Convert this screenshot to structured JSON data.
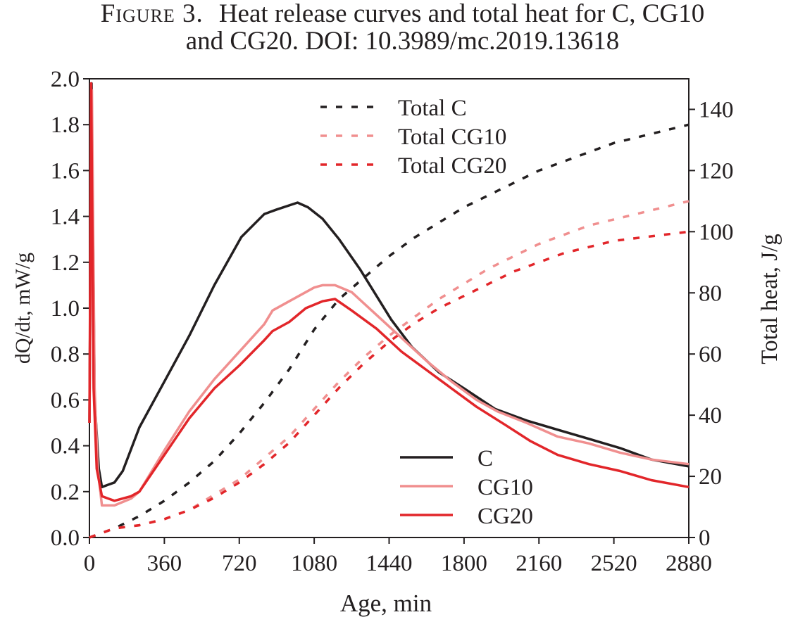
{
  "caption": {
    "label": "Figure 3.",
    "line1": "Heat release curves and total heat for C, CG10",
    "line2": "and CG20. DOI: 10.3989/mc.2019.13618"
  },
  "chart_data": {
    "type": "line",
    "xlabel": "Age, min",
    "ylabel_left": "dQ/dt, mW/g",
    "ylabel_right": "Total heat, J/g",
    "xlim": [
      0,
      2880
    ],
    "ylim_left": [
      0,
      2.0
    ],
    "ylim_right": [
      0,
      150
    ],
    "x_ticks": [
      0,
      360,
      720,
      1080,
      1440,
      1800,
      2160,
      2520,
      2880
    ],
    "y_left_ticks": [
      0.0,
      0.2,
      0.4,
      0.6,
      0.8,
      1.0,
      1.2,
      1.4,
      1.6,
      1.8,
      2.0
    ],
    "y_left_tick_labels": [
      "0.0",
      "0.2",
      "0.4",
      "0.6",
      "0.8",
      "1.0",
      "1.2",
      "1.4",
      "1.6",
      "1.8",
      "2.0"
    ],
    "y_right_ticks": [
      0,
      20,
      40,
      60,
      80,
      100,
      120,
      140
    ],
    "grid": false,
    "legend_top": "top-center",
    "legend_bottom": "bottom-right",
    "colors": {
      "C": "#231f20",
      "CG10": "#f08f8f",
      "CG20": "#e2262a"
    },
    "series": [
      {
        "name": "C",
        "axis": "left",
        "style": "solid",
        "color": "#231f20",
        "points": [
          [
            0,
            0.5
          ],
          [
            10,
            1.98
          ],
          [
            25,
            0.6
          ],
          [
            45,
            0.3
          ],
          [
            60,
            0.22
          ],
          [
            90,
            0.23
          ],
          [
            120,
            0.24
          ],
          [
            160,
            0.29
          ],
          [
            240,
            0.48
          ],
          [
            360,
            0.68
          ],
          [
            480,
            0.88
          ],
          [
            600,
            1.1
          ],
          [
            730,
            1.31
          ],
          [
            840,
            1.41
          ],
          [
            900,
            1.43
          ],
          [
            1000,
            1.46
          ],
          [
            1050,
            1.44
          ],
          [
            1120,
            1.39
          ],
          [
            1200,
            1.3
          ],
          [
            1300,
            1.17
          ],
          [
            1450,
            0.95
          ],
          [
            1550,
            0.83
          ],
          [
            1680,
            0.72
          ],
          [
            1800,
            0.65
          ],
          [
            1950,
            0.56
          ],
          [
            2100,
            0.51
          ],
          [
            2250,
            0.47
          ],
          [
            2400,
            0.43
          ],
          [
            2550,
            0.39
          ],
          [
            2700,
            0.34
          ],
          [
            2880,
            0.31
          ]
        ]
      },
      {
        "name": "CG10",
        "axis": "left",
        "style": "solid",
        "color": "#f08f8f",
        "points": [
          [
            0,
            0.5
          ],
          [
            12,
            1.95
          ],
          [
            25,
            0.65
          ],
          [
            40,
            0.3
          ],
          [
            60,
            0.14
          ],
          [
            120,
            0.14
          ],
          [
            200,
            0.17
          ],
          [
            240,
            0.2
          ],
          [
            360,
            0.38
          ],
          [
            480,
            0.55
          ],
          [
            600,
            0.69
          ],
          [
            720,
            0.81
          ],
          [
            840,
            0.93
          ],
          [
            880,
            0.99
          ],
          [
            960,
            1.03
          ],
          [
            1080,
            1.09
          ],
          [
            1120,
            1.1
          ],
          [
            1180,
            1.1
          ],
          [
            1260,
            1.07
          ],
          [
            1380,
            0.97
          ],
          [
            1500,
            0.87
          ],
          [
            1620,
            0.77
          ],
          [
            1740,
            0.68
          ],
          [
            1860,
            0.6
          ],
          [
            1960,
            0.55
          ],
          [
            2100,
            0.5
          ],
          [
            2250,
            0.44
          ],
          [
            2400,
            0.41
          ],
          [
            2550,
            0.37
          ],
          [
            2700,
            0.34
          ],
          [
            2880,
            0.32
          ]
        ]
      },
      {
        "name": "CG20",
        "axis": "left",
        "style": "solid",
        "color": "#e2262a",
        "points": [
          [
            0,
            0.5
          ],
          [
            8,
            1.98
          ],
          [
            20,
            0.65
          ],
          [
            35,
            0.3
          ],
          [
            60,
            0.18
          ],
          [
            90,
            0.17
          ],
          [
            120,
            0.16
          ],
          [
            200,
            0.18
          ],
          [
            240,
            0.2
          ],
          [
            360,
            0.36
          ],
          [
            480,
            0.52
          ],
          [
            600,
            0.65
          ],
          [
            720,
            0.75
          ],
          [
            840,
            0.86
          ],
          [
            880,
            0.9
          ],
          [
            960,
            0.94
          ],
          [
            1040,
            1.0
          ],
          [
            1120,
            1.03
          ],
          [
            1180,
            1.04
          ],
          [
            1260,
            0.99
          ],
          [
            1380,
            0.91
          ],
          [
            1500,
            0.81
          ],
          [
            1620,
            0.73
          ],
          [
            1740,
            0.65
          ],
          [
            1860,
            0.57
          ],
          [
            2000,
            0.49
          ],
          [
            2120,
            0.42
          ],
          [
            2250,
            0.36
          ],
          [
            2400,
            0.32
          ],
          [
            2550,
            0.29
          ],
          [
            2700,
            0.25
          ],
          [
            2880,
            0.22
          ]
        ]
      },
      {
        "name": "Total C",
        "axis": "right",
        "style": "dashed",
        "color": "#231f20",
        "points": [
          [
            0,
            0
          ],
          [
            120,
            3
          ],
          [
            240,
            7
          ],
          [
            360,
            12
          ],
          [
            480,
            18
          ],
          [
            600,
            25
          ],
          [
            720,
            34
          ],
          [
            840,
            44
          ],
          [
            960,
            55
          ],
          [
            1080,
            68
          ],
          [
            1200,
            78
          ],
          [
            1320,
            85
          ],
          [
            1440,
            92
          ],
          [
            1560,
            98
          ],
          [
            1680,
            103
          ],
          [
            1800,
            108
          ],
          [
            1920,
            112
          ],
          [
            2040,
            116
          ],
          [
            2160,
            120
          ],
          [
            2280,
            123
          ],
          [
            2400,
            126
          ],
          [
            2520,
            129
          ],
          [
            2640,
            131
          ],
          [
            2760,
            133
          ],
          [
            2880,
            135
          ]
        ]
      },
      {
        "name": "Total CG10",
        "axis": "right",
        "style": "dashed",
        "color": "#f08f8f",
        "points": [
          [
            0,
            0
          ],
          [
            120,
            3
          ],
          [
            240,
            4
          ],
          [
            360,
            6
          ],
          [
            480,
            9
          ],
          [
            600,
            14
          ],
          [
            720,
            19
          ],
          [
            840,
            26
          ],
          [
            960,
            33
          ],
          [
            1080,
            42
          ],
          [
            1200,
            51
          ],
          [
            1320,
            59
          ],
          [
            1440,
            66
          ],
          [
            1560,
            72
          ],
          [
            1680,
            78
          ],
          [
            1800,
            83
          ],
          [
            1920,
            88
          ],
          [
            2040,
            92
          ],
          [
            2160,
            96
          ],
          [
            2280,
            99
          ],
          [
            2400,
            102
          ],
          [
            2520,
            104
          ],
          [
            2640,
            106
          ],
          [
            2760,
            108
          ],
          [
            2880,
            110
          ]
        ]
      },
      {
        "name": "Total CG20",
        "axis": "right",
        "style": "dashed",
        "color": "#e2262a",
        "points": [
          [
            0,
            0
          ],
          [
            120,
            3
          ],
          [
            240,
            4
          ],
          [
            360,
            6
          ],
          [
            480,
            9
          ],
          [
            600,
            13
          ],
          [
            720,
            18
          ],
          [
            840,
            24
          ],
          [
            960,
            31
          ],
          [
            1080,
            40
          ],
          [
            1200,
            49
          ],
          [
            1320,
            57
          ],
          [
            1440,
            64
          ],
          [
            1560,
            70
          ],
          [
            1680,
            75
          ],
          [
            1800,
            79
          ],
          [
            1920,
            83
          ],
          [
            2040,
            87
          ],
          [
            2160,
            90
          ],
          [
            2280,
            93
          ],
          [
            2400,
            95
          ],
          [
            2520,
            97
          ],
          [
            2640,
            98
          ],
          [
            2760,
            99
          ],
          [
            2880,
            100
          ]
        ]
      }
    ],
    "legend_top_entries": [
      "Total C",
      "Total CG10",
      "Total CG20"
    ],
    "legend_bottom_entries": [
      "C",
      "CG10",
      "CG20"
    ]
  }
}
